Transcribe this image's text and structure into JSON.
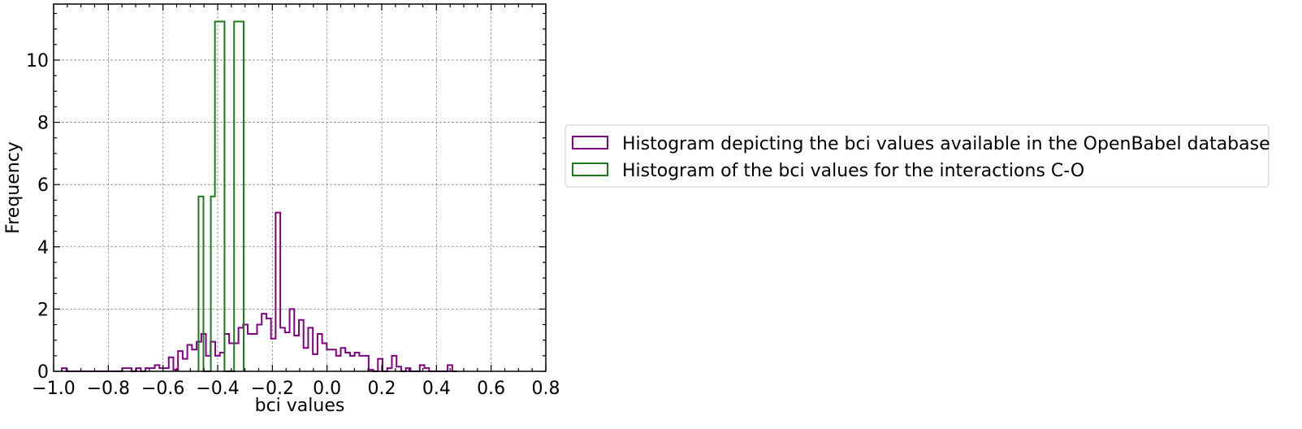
{
  "chart_data": {
    "type": "histogram",
    "xlabel": "bci values",
    "ylabel": "Frequency",
    "xlim": [
      -1.0,
      0.8
    ],
    "ylim": [
      0,
      11.8
    ],
    "x_ticks": [
      -1.0,
      -0.8,
      -0.6,
      -0.4,
      -0.2,
      0.0,
      0.2,
      0.4,
      0.6,
      0.8
    ],
    "x_tick_labels": [
      "−1.0",
      "−0.8",
      "−0.6",
      "−0.4",
      "−0.2",
      "0.0",
      "0.2",
      "0.4",
      "0.6",
      "0.8"
    ],
    "y_ticks": [
      0,
      2,
      4,
      6,
      8,
      10
    ],
    "y_tick_labels": [
      "0",
      "2",
      "4",
      "6",
      "8",
      "10"
    ],
    "grid": true,
    "legend_position": "right-outside",
    "series": [
      {
        "name": "Histogram depicting the bci values available in the OpenBabel database",
        "color": "#800080",
        "bin_start": -0.97,
        "bin_width": 0.017,
        "values": [
          0.1,
          0,
          0,
          0,
          0,
          0,
          0,
          0,
          0,
          0,
          0,
          0,
          0,
          0.1,
          0.1,
          0,
          0.1,
          0,
          0.1,
          0.1,
          0.2,
          0.1,
          0.1,
          0.45,
          0.05,
          0.65,
          0.4,
          0.85,
          0.7,
          0.95,
          1.2,
          0.5,
          0.95,
          0.5,
          0.6,
          1.2,
          0.9,
          0.9,
          1.4,
          1.5,
          1.2,
          1.2,
          1.5,
          1.85,
          1.7,
          1.05,
          5.1,
          1.4,
          1.25,
          2.0,
          1.15,
          1.65,
          0.75,
          1.4,
          0.55,
          1.2,
          0.9,
          0.7,
          0.7,
          0.5,
          0.75,
          0.6,
          0.5,
          0.6,
          0.5,
          0.5,
          0.05,
          0,
          0.4,
          0,
          0.1,
          0.5,
          0.15,
          0,
          0.1,
          0,
          0,
          0.2,
          0.1,
          0,
          0,
          0,
          0,
          0.2,
          0
        ]
      },
      {
        "name": "Histogram of the bci values for the interactions C-O",
        "color": "#1f7a1f",
        "bin_edges": [
          -0.47,
          -0.452,
          -0.425,
          -0.41,
          -0.375,
          -0.34,
          -0.305
        ],
        "values": [
          5.62,
          0,
          5.62,
          11.24,
          0,
          11.24
        ]
      }
    ]
  }
}
